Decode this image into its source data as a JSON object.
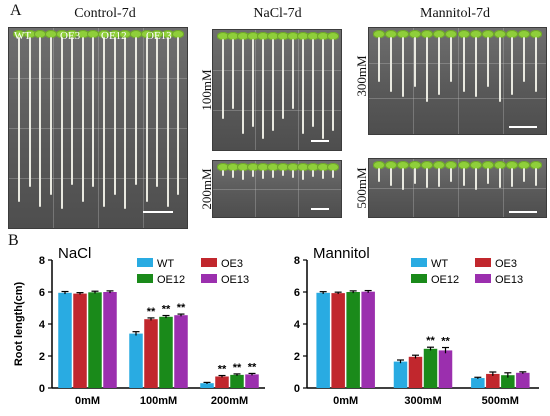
{
  "panel_a": {
    "letter": "A",
    "control": {
      "title": "Control-7d",
      "genotypes": [
        "WT",
        "OE3",
        "OE12",
        "OE13"
      ]
    },
    "nacl": {
      "title": "NaCl-7d",
      "conc_top": "100mM",
      "conc_bottom": "200mM"
    },
    "mannitol": {
      "title": "Mannitol-7d",
      "conc_top": "300mM",
      "conc_bottom": "500mM"
    }
  },
  "panel_b": {
    "letter": "B"
  },
  "colors": {
    "WT": "#29abe2",
    "OE3": "#c1272d",
    "OE12": "#1a8a1a",
    "OE13": "#9b2fae"
  },
  "chart_data": [
    {
      "type": "bar",
      "title": "NaCl",
      "ylabel": "Root length(cm)",
      "xlabel": "",
      "ylim": [
        0,
        8
      ],
      "yticks": [
        "0",
        "2",
        "4",
        "6",
        "8"
      ],
      "categories": [
        "0mM",
        "100mM",
        "200mM"
      ],
      "legend_position": "top-right",
      "series": [
        {
          "name": "WT",
          "values": [
            5.95,
            3.4,
            0.3
          ],
          "errors": [
            0.08,
            0.12,
            0.05
          ]
        },
        {
          "name": "OE3",
          "values": [
            5.9,
            4.3,
            0.72
          ],
          "errors": [
            0.06,
            0.08,
            0.06
          ]
        },
        {
          "name": "OE12",
          "values": [
            5.98,
            4.45,
            0.82
          ],
          "errors": [
            0.07,
            0.08,
            0.06
          ]
        },
        {
          "name": "OE13",
          "values": [
            6.0,
            4.55,
            0.85
          ],
          "errors": [
            0.07,
            0.07,
            0.06
          ]
        }
      ],
      "significance": [
        {
          "category": "100mM",
          "series": "OE3",
          "label": "**"
        },
        {
          "category": "100mM",
          "series": "OE12",
          "label": "**"
        },
        {
          "category": "100mM",
          "series": "OE13",
          "label": "**"
        },
        {
          "category": "200mM",
          "series": "OE3",
          "label": "**"
        },
        {
          "category": "200mM",
          "series": "OE12",
          "label": "**"
        },
        {
          "category": "200mM",
          "series": "OE13",
          "label": "**"
        }
      ]
    },
    {
      "type": "bar",
      "title": "Mannitol",
      "ylabel": "",
      "xlabel": "",
      "ylim": [
        0,
        8
      ],
      "yticks": [
        "0",
        "2",
        "4",
        "6",
        "8"
      ],
      "categories": [
        "0mM",
        "300mM",
        "500mM"
      ],
      "legend_position": "top-right",
      "series": [
        {
          "name": "WT",
          "values": [
            5.95,
            1.65,
            0.62
          ],
          "errors": [
            0.07,
            0.1,
            0.05
          ]
        },
        {
          "name": "OE3",
          "values": [
            5.93,
            1.95,
            0.88
          ],
          "errors": [
            0.06,
            0.1,
            0.12
          ]
        },
        {
          "name": "OE12",
          "values": [
            6.0,
            2.45,
            0.8
          ],
          "errors": [
            0.07,
            0.1,
            0.15
          ]
        },
        {
          "name": "OE13",
          "values": [
            6.02,
            2.35,
            0.95
          ],
          "errors": [
            0.07,
            0.18,
            0.06
          ]
        }
      ],
      "significance": [
        {
          "category": "300mM",
          "series": "OE12",
          "label": "**"
        },
        {
          "category": "300mM",
          "series": "OE13",
          "label": "**"
        }
      ]
    }
  ]
}
